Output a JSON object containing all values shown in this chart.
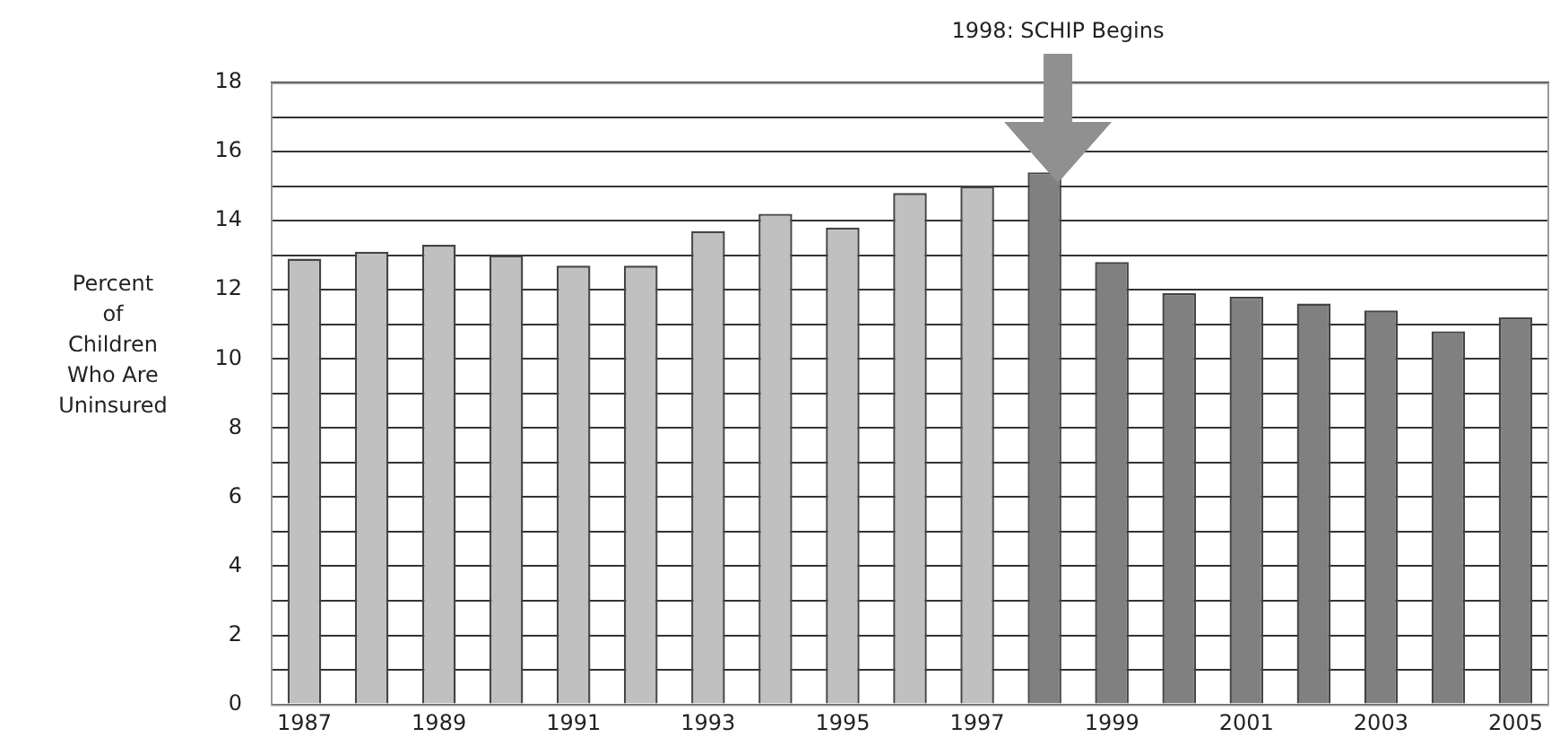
{
  "chart_data": {
    "type": "bar",
    "ylabel": "Percent of Children Who Are Uninsured",
    "categories": [
      "1987",
      null,
      "1989",
      null,
      "1991",
      null,
      "1993",
      null,
      "1995",
      null,
      "1997",
      null,
      "1999",
      null,
      "2001",
      null,
      "2003",
      null,
      "2005"
    ],
    "values": [
      12.9,
      13.1,
      13.3,
      13.0,
      12.7,
      12.7,
      13.7,
      14.2,
      13.8,
      14.8,
      15.0,
      15.4,
      12.8,
      11.9,
      11.8,
      11.6,
      11.4,
      10.8,
      11.2
    ],
    "colors": [
      "#c0c0c0",
      "#c0c0c0",
      "#c0c0c0",
      "#c0c0c0",
      "#c0c0c0",
      "#c0c0c0",
      "#c0c0c0",
      "#c0c0c0",
      "#c0c0c0",
      "#c0c0c0",
      "#c0c0c0",
      "#808080",
      "#808080",
      "#808080",
      "#808080",
      "#808080",
      "#808080",
      "#808080",
      "#808080"
    ],
    "ylim": [
      0,
      18
    ],
    "yticks": [
      0,
      {
        "value": 1,
        "label": null
      },
      2,
      {
        "value": 3,
        "label": null
      },
      4,
      {
        "value": 5,
        "label": null
      },
      6,
      {
        "value": 7,
        "label": null
      },
      8,
      {
        "value": 9,
        "label": null
      },
      10,
      {
        "value": 11,
        "label": null
      },
      12,
      {
        "value": 13,
        "label": null
      },
      14,
      {
        "value": 15,
        "label": null
      },
      16,
      {
        "value": 17,
        "label": null
      },
      18
    ],
    "grid": "y",
    "annotations": [
      "1998: SCHIP Begins"
    ]
  }
}
